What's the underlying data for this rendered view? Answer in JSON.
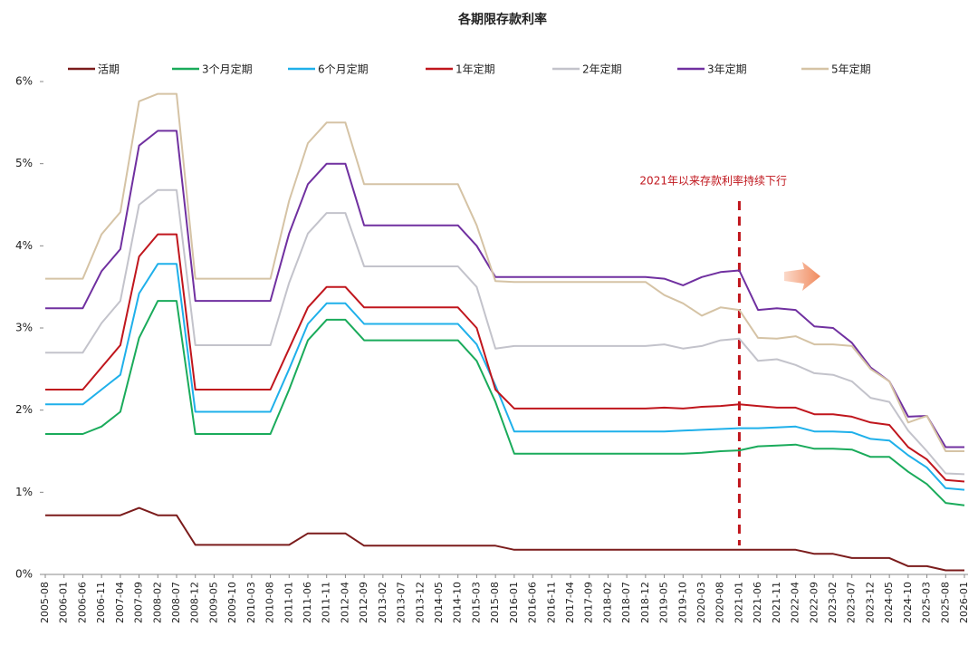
{
  "chart_data": {
    "type": "line",
    "title": "各期限存款利率",
    "x": [
      "2005-08",
      "2006-01",
      "2006-06",
      "2006-11",
      "2007-04",
      "2007-09",
      "2008-02",
      "2008-07",
      "2008-12",
      "2009-05",
      "2009-10",
      "2010-03",
      "2010-08",
      "2011-01",
      "2011-06",
      "2011-11",
      "2012-04",
      "2012-09",
      "2013-02",
      "2013-07",
      "2013-12",
      "2014-05",
      "2014-10",
      "2015-03",
      "2015-08",
      "2016-01",
      "2016-06",
      "2016-11",
      "2017-04",
      "2017-09",
      "2018-02",
      "2018-07",
      "2018-12",
      "2019-05",
      "2019-10",
      "2020-03",
      "2020-08",
      "2021-01",
      "2021-06",
      "2021-11",
      "2022-04",
      "2022-09",
      "2023-02",
      "2023-07",
      "2023-12",
      "2024-05",
      "2024-10",
      "2025-03",
      "2025-08",
      "2026-01"
    ],
    "series": [
      {
        "name": "活期",
        "color": "#7b1c1c",
        "values": [
          0.72,
          0.72,
          0.72,
          0.72,
          0.72,
          0.81,
          0.72,
          0.72,
          0.36,
          0.36,
          0.36,
          0.36,
          0.36,
          0.36,
          0.5,
          0.5,
          0.5,
          0.35,
          0.35,
          0.35,
          0.35,
          0.35,
          0.35,
          0.35,
          0.35,
          0.3,
          0.3,
          0.3,
          0.3,
          0.3,
          0.3,
          0.3,
          0.3,
          0.3,
          0.3,
          0.3,
          0.3,
          0.3,
          0.3,
          0.3,
          0.3,
          0.25,
          0.25,
          0.2,
          0.2,
          0.2,
          0.1,
          0.1,
          0.05,
          0.05
        ]
      },
      {
        "name": "3个月定期",
        "color": "#1aab5b",
        "values": [
          1.71,
          1.71,
          1.71,
          1.8,
          1.98,
          2.88,
          3.33,
          3.33,
          1.71,
          1.71,
          1.71,
          1.71,
          1.71,
          2.25,
          2.85,
          3.1,
          3.1,
          2.85,
          2.85,
          2.85,
          2.85,
          2.85,
          2.85,
          2.6,
          2.1,
          1.47,
          1.47,
          1.47,
          1.47,
          1.47,
          1.47,
          1.47,
          1.47,
          1.47,
          1.47,
          1.48,
          1.5,
          1.51,
          1.56,
          1.57,
          1.58,
          1.53,
          1.53,
          1.52,
          1.43,
          1.43,
          1.25,
          1.1,
          0.87,
          0.84
        ]
      },
      {
        "name": "6个月定期",
        "color": "#1fb0ea",
        "values": [
          2.07,
          2.07,
          2.07,
          2.25,
          2.43,
          3.42,
          3.78,
          3.78,
          1.98,
          1.98,
          1.98,
          1.98,
          1.98,
          2.5,
          3.05,
          3.3,
          3.3,
          3.05,
          3.05,
          3.05,
          3.05,
          3.05,
          3.05,
          2.8,
          2.3,
          1.74,
          1.74,
          1.74,
          1.74,
          1.74,
          1.74,
          1.74,
          1.74,
          1.74,
          1.75,
          1.76,
          1.77,
          1.78,
          1.78,
          1.79,
          1.8,
          1.74,
          1.74,
          1.73,
          1.65,
          1.63,
          1.45,
          1.3,
          1.05,
          1.03
        ]
      },
      {
        "name": "1年定期",
        "color": "#c0161d",
        "values": [
          2.25,
          2.25,
          2.25,
          2.52,
          2.79,
          3.87,
          4.14,
          4.14,
          2.25,
          2.25,
          2.25,
          2.25,
          2.25,
          2.75,
          3.25,
          3.5,
          3.5,
          3.25,
          3.25,
          3.25,
          3.25,
          3.25,
          3.25,
          3.0,
          2.25,
          2.02,
          2.02,
          2.02,
          2.02,
          2.02,
          2.02,
          2.02,
          2.02,
          2.03,
          2.02,
          2.04,
          2.05,
          2.07,
          2.05,
          2.03,
          2.03,
          1.95,
          1.95,
          1.92,
          1.85,
          1.82,
          1.55,
          1.4,
          1.15,
          1.13
        ]
      },
      {
        "name": "2年定期",
        "color": "#c3c3cb",
        "values": [
          2.7,
          2.7,
          2.7,
          3.06,
          3.33,
          4.5,
          4.68,
          4.68,
          2.79,
          2.79,
          2.79,
          2.79,
          2.79,
          3.55,
          4.15,
          4.4,
          4.4,
          3.75,
          3.75,
          3.75,
          3.75,
          3.75,
          3.75,
          3.5,
          2.75,
          2.78,
          2.78,
          2.78,
          2.78,
          2.78,
          2.78,
          2.78,
          2.78,
          2.8,
          2.75,
          2.78,
          2.85,
          2.87,
          2.6,
          2.62,
          2.55,
          2.45,
          2.43,
          2.35,
          2.15,
          2.1,
          1.75,
          1.5,
          1.23,
          1.22
        ]
      },
      {
        "name": "3年定期",
        "color": "#7030a0",
        "values": [
          3.24,
          3.24,
          3.24,
          3.69,
          3.96,
          5.22,
          5.4,
          5.4,
          3.33,
          3.33,
          3.33,
          3.33,
          3.33,
          4.15,
          4.75,
          5.0,
          5.0,
          4.25,
          4.25,
          4.25,
          4.25,
          4.25,
          4.25,
          4.0,
          3.62,
          3.62,
          3.62,
          3.62,
          3.62,
          3.62,
          3.62,
          3.62,
          3.62,
          3.6,
          3.52,
          3.62,
          3.68,
          3.7,
          3.22,
          3.24,
          3.22,
          3.02,
          3.0,
          2.82,
          2.52,
          2.35,
          1.92,
          1.93,
          1.55,
          1.55
        ]
      },
      {
        "name": "5年定期",
        "color": "#d5c3a5",
        "values": [
          3.6,
          3.6,
          3.6,
          4.14,
          4.41,
          5.76,
          5.85,
          5.85,
          3.6,
          3.6,
          3.6,
          3.6,
          3.6,
          4.55,
          5.25,
          5.5,
          5.5,
          4.75,
          4.75,
          4.75,
          4.75,
          4.75,
          4.75,
          4.25,
          3.57,
          3.56,
          3.56,
          3.56,
          3.56,
          3.56,
          3.56,
          3.56,
          3.56,
          3.4,
          3.3,
          3.15,
          3.25,
          3.22,
          2.88,
          2.87,
          2.9,
          2.8,
          2.8,
          2.78,
          2.5,
          2.35,
          1.85,
          1.93,
          1.5,
          1.5
        ]
      }
    ],
    "ylim": [
      0,
      6
    ],
    "yticks": [
      {
        "value": 0,
        "label": "0%"
      },
      {
        "value": 1,
        "label": "1%"
      },
      {
        "value": 2,
        "label": "2%"
      },
      {
        "value": 3,
        "label": "3%"
      },
      {
        "value": 4,
        "label": "4%"
      },
      {
        "value": 5,
        "label": "5%"
      },
      {
        "value": 6,
        "label": "6%"
      }
    ],
    "annotation": {
      "text": "2021年以来存款利率持续下行",
      "x": "2021-01"
    }
  }
}
